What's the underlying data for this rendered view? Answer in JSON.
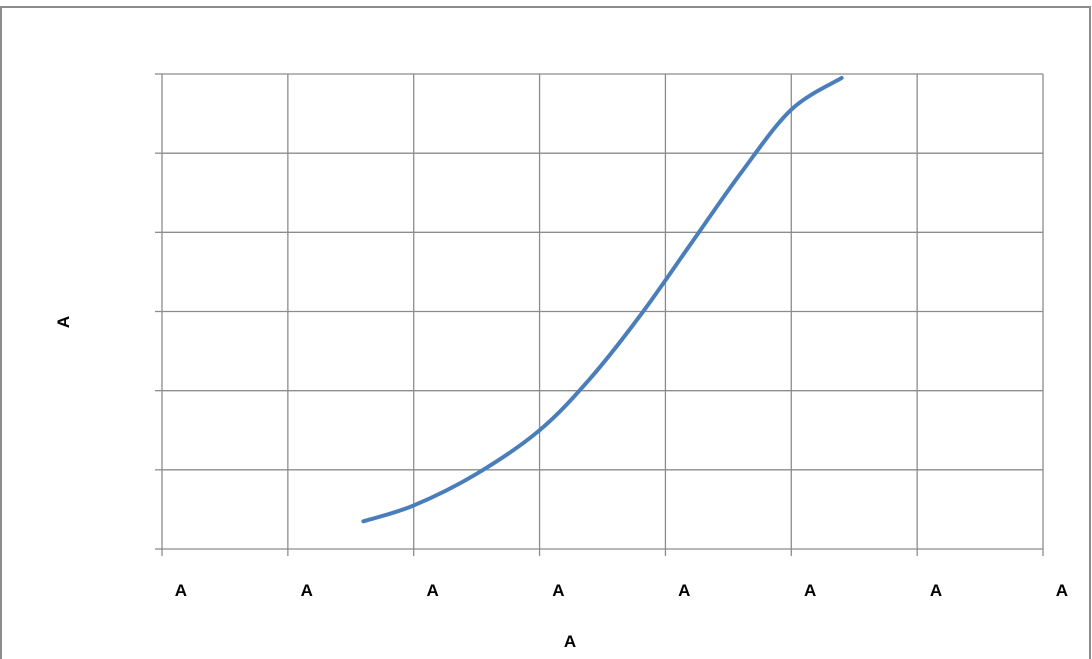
{
  "chart_data": {
    "type": "line",
    "xlabel": "A",
    "ylabel": "A",
    "x_tick_labels": [
      "A",
      "A",
      "A",
      "A",
      "A",
      "A",
      "A",
      "A"
    ],
    "xlim": [
      0,
      7
    ],
    "ylim": [
      0,
      6
    ],
    "y_gridlines": 6,
    "grid": true,
    "series": [
      {
        "color": "#4a7ebb",
        "points": [
          [
            1.6,
            0.35
          ],
          [
            2.0,
            0.55
          ],
          [
            2.5,
            0.95
          ],
          [
            3.0,
            1.5
          ],
          [
            3.4,
            2.15
          ],
          [
            3.8,
            2.95
          ],
          [
            4.2,
            3.85
          ],
          [
            4.6,
            4.75
          ],
          [
            5.0,
            5.55
          ],
          [
            5.4,
            5.95
          ]
        ]
      }
    ]
  }
}
